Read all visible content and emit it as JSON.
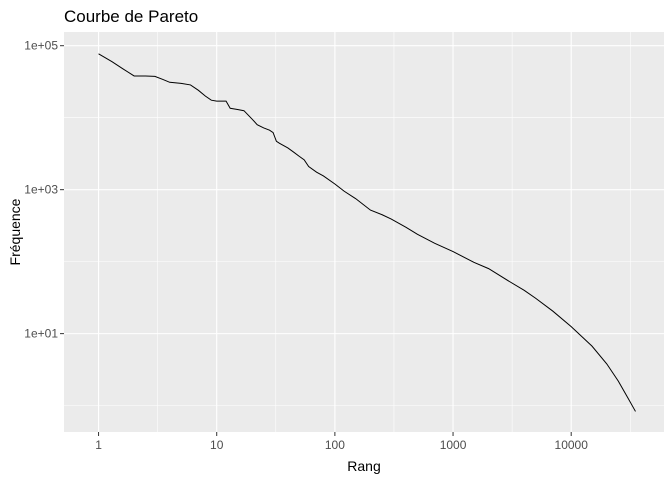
{
  "chart_data": {
    "type": "line",
    "title": "Courbe de Pareto",
    "xlabel": "Rang",
    "ylabel": "Fréquence",
    "x_scale": "log10",
    "y_scale": "log10",
    "xlim": [
      0.51,
      61000
    ],
    "ylim": [
      0.43,
      155000
    ],
    "x_ticks": [
      1,
      10,
      100,
      1000,
      10000
    ],
    "x_tick_labels": [
      "1",
      "10",
      "100",
      "1000",
      "10000"
    ],
    "y_ticks": [
      10,
      1000,
      100000
    ],
    "y_tick_labels": [
      "1e+01",
      "1e+03",
      "1e+05"
    ],
    "grid": true,
    "legend": "none",
    "colors": {
      "panel": "#ebebeb",
      "grid": "#ffffff",
      "line": "#000000"
    },
    "series": [
      {
        "x": [
          1,
          1.3,
          1.6,
          2,
          2.5,
          3,
          3.5,
          4,
          5,
          6,
          7,
          8,
          9,
          10,
          12,
          13,
          15,
          17,
          20,
          22,
          25,
          28,
          30,
          32,
          34,
          40,
          45,
          50,
          55,
          60,
          70,
          80,
          100,
          120,
          150,
          200,
          250,
          300,
          400,
          500,
          700,
          1000,
          1500,
          2000,
          3000,
          4000,
          5000,
          7000,
          10000,
          15000,
          20000,
          25000,
          30000,
          35000
        ],
        "y": [
          77000,
          60000,
          48000,
          38000,
          38000,
          37500,
          34000,
          31000,
          30000,
          28500,
          24000,
          20000,
          17500,
          17000,
          17000,
          13500,
          13000,
          12500,
          9500,
          8000,
          7200,
          6700,
          6200,
          4700,
          4400,
          3800,
          3300,
          2900,
          2600,
          2100,
          1750,
          1550,
          1200,
          950,
          750,
          520,
          450,
          390,
          300,
          240,
          180,
          138,
          98,
          80,
          53,
          40,
          31,
          20.5,
          12.5,
          6.7,
          3.8,
          2.2,
          1.3,
          0.83
        ]
      }
    ]
  }
}
